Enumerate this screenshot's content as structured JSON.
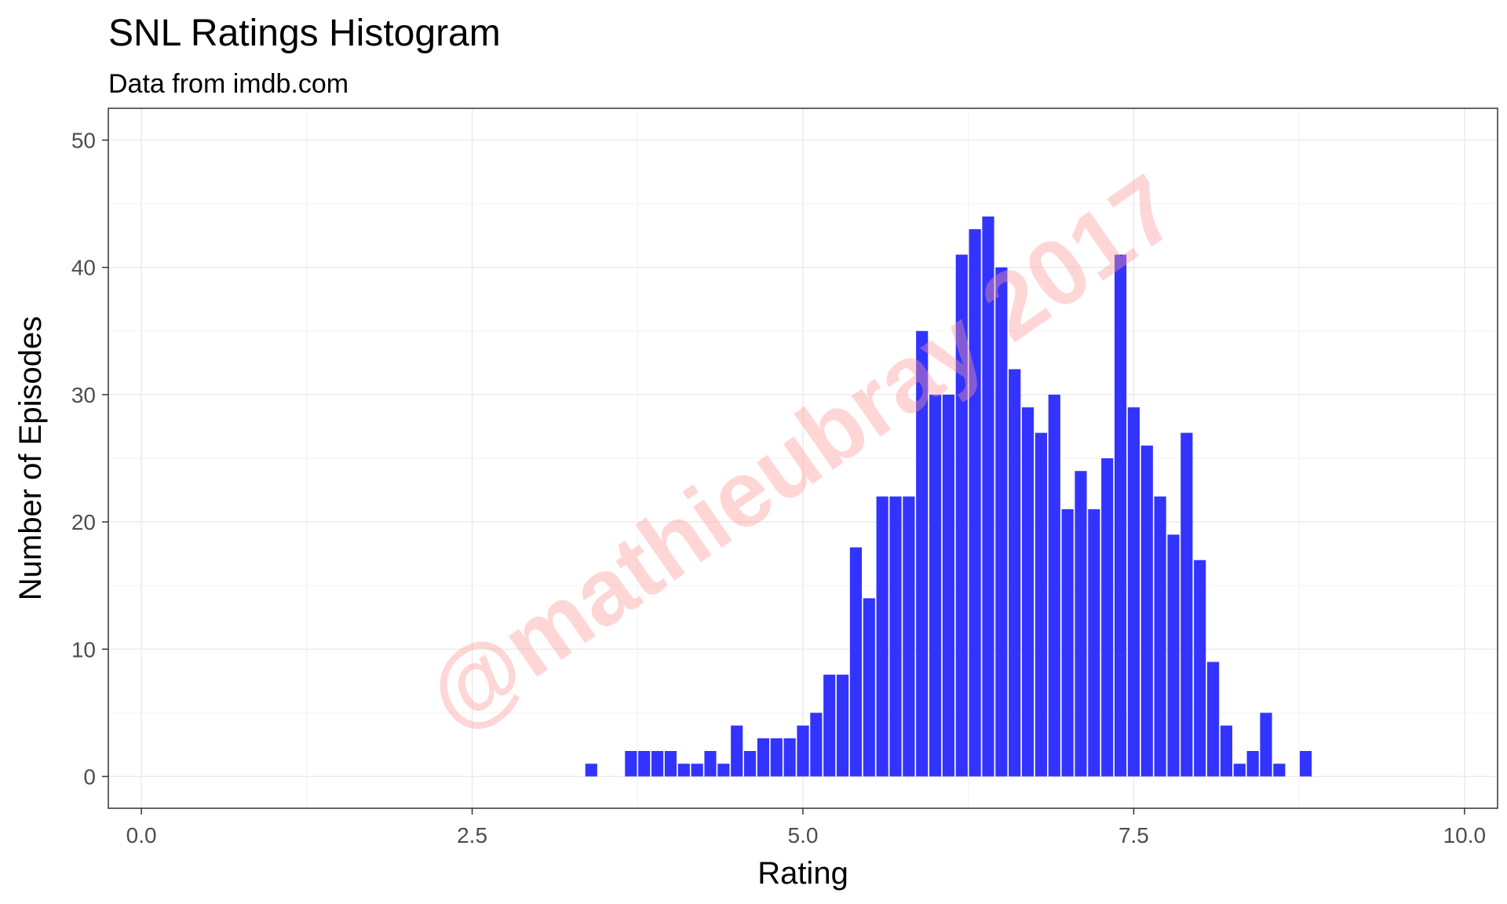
{
  "chart_data": {
    "type": "bar",
    "title": "SNL Ratings Histogram",
    "subtitle": "Data from imdb.com",
    "xlabel": "Rating",
    "ylabel": "Number of Episodes",
    "xlim": [
      -0.25,
      10.25
    ],
    "ylim": [
      -2.5,
      52.5
    ],
    "xticks": [
      0.0,
      2.5,
      5.0,
      7.5,
      10.0
    ],
    "xtick_labels": [
      "0.0",
      "2.5",
      "5.0",
      "7.5",
      "10.0"
    ],
    "yticks": [
      0,
      10,
      20,
      30,
      40,
      50
    ],
    "ytick_labels": [
      "0",
      "10",
      "20",
      "30",
      "40",
      "50"
    ],
    "grid": true,
    "bar_color": "#3333ff",
    "bin_width": 0.1,
    "x": [
      3.4,
      3.7,
      3.8,
      3.9,
      4.0,
      4.1,
      4.2,
      4.3,
      4.4,
      4.5,
      4.6,
      4.7,
      4.8,
      4.9,
      5.0,
      5.1,
      5.2,
      5.3,
      5.4,
      5.5,
      5.6,
      5.7,
      5.8,
      5.9,
      6.0,
      6.1,
      6.2,
      6.3,
      6.4,
      6.5,
      6.6,
      6.7,
      6.8,
      6.9,
      7.0,
      7.1,
      7.2,
      7.3,
      7.4,
      7.5,
      7.6,
      7.7,
      7.8,
      7.9,
      8.0,
      8.1,
      8.2,
      8.3,
      8.4,
      8.5,
      8.6,
      8.8
    ],
    "values": [
      1,
      2,
      2,
      2,
      2,
      1,
      1,
      2,
      1,
      4,
      2,
      3,
      3,
      3,
      4,
      5,
      8,
      8,
      18,
      14,
      22,
      22,
      22,
      35,
      30,
      30,
      41,
      43,
      44,
      40,
      32,
      29,
      27,
      30,
      21,
      24,
      21,
      25,
      41,
      29,
      26,
      22,
      19,
      27,
      17,
      9,
      4,
      1,
      2,
      5,
      1,
      2
    ]
  },
  "watermark": "@mathieubray 2017"
}
